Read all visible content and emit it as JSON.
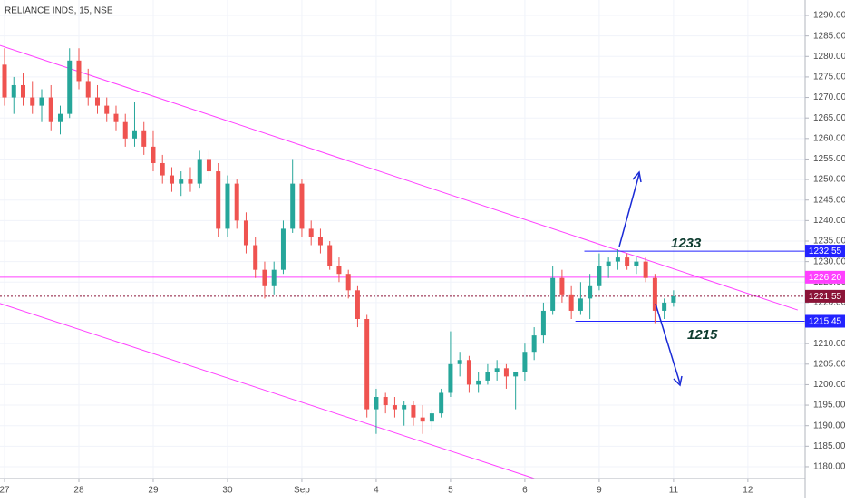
{
  "chart_data": {
    "type": "candlestick",
    "title": "RELIANCE INDS, 15, NSE",
    "up_color": "#26a69a",
    "down_color": "#ef5350",
    "grid": true,
    "xlim": [
      -0.061,
      10.77
    ],
    "xticks": [
      {
        "value": 0,
        "label": "27"
      },
      {
        "value": 1,
        "label": "28"
      },
      {
        "value": 2,
        "label": "29"
      },
      {
        "value": 3,
        "label": "30"
      },
      {
        "value": 4,
        "label": "Sep"
      },
      {
        "value": 5,
        "label": "4"
      },
      {
        "value": 6,
        "label": "5"
      },
      {
        "value": 7,
        "label": "6"
      },
      {
        "value": 8,
        "label": "9"
      },
      {
        "value": 9,
        "label": "11"
      },
      {
        "value": 10,
        "label": "12"
      }
    ],
    "ylim": [
      1177.12,
      1293.76
    ],
    "yticks": [
      {
        "value": 1180,
        "label": "1180.00"
      },
      {
        "value": 1185,
        "label": "1185.00"
      },
      {
        "value": 1190,
        "label": "1190.00"
      },
      {
        "value": 1195,
        "label": "1195.00"
      },
      {
        "value": 1200,
        "label": "1200.00"
      },
      {
        "value": 1205,
        "label": "1205.00"
      },
      {
        "value": 1210,
        "label": "1210.00"
      },
      {
        "value": 1215,
        "label": "1215.00"
      },
      {
        "value": 1220,
        "label": "1220.00"
      },
      {
        "value": 1225,
        "label": "1225.00"
      },
      {
        "value": 1230,
        "label": "1230.00"
      },
      {
        "value": 1235,
        "label": "1235.00"
      },
      {
        "value": 1240,
        "label": "1240.00"
      },
      {
        "value": 1245,
        "label": "1245.00"
      },
      {
        "value": 1250,
        "label": "1250.00"
      },
      {
        "value": 1255,
        "label": "1255.00"
      },
      {
        "value": 1260,
        "label": "1260.00"
      },
      {
        "value": 1265,
        "label": "1265.00"
      },
      {
        "value": 1270,
        "label": "1270.00"
      },
      {
        "value": 1275,
        "label": "1275.00"
      },
      {
        "value": 1280,
        "label": "1280.00"
      },
      {
        "value": 1285,
        "label": "1285.00"
      },
      {
        "value": 1290,
        "label": "1290.00"
      }
    ],
    "x": [
      0,
      0.125,
      0.25,
      0.375,
      0.5,
      0.625,
      0.75,
      0.875,
      1,
      1.125,
      1.25,
      1.375,
      1.5,
      1.625,
      1.75,
      1.875,
      2,
      2.125,
      2.25,
      2.375,
      2.5,
      2.625,
      2.75,
      2.875,
      3,
      3.125,
      3.25,
      3.375,
      3.5,
      3.625,
      3.75,
      3.875,
      4,
      4.125,
      4.25,
      4.375,
      4.5,
      4.625,
      4.75,
      4.875,
      5,
      5.125,
      5.25,
      5.375,
      5.5,
      5.625,
      5.75,
      5.875,
      6,
      6.125,
      6.25,
      6.375,
      6.5,
      6.625,
      6.75,
      6.875,
      7,
      7.125,
      7.25,
      7.375,
      7.5,
      7.625,
      7.75,
      7.875,
      8,
      8.125,
      8.25,
      8.375,
      8.5,
      8.625,
      8.75,
      8.875,
      9
    ],
    "open": [
      1278,
      1270,
      1273,
      1270,
      1268,
      1270,
      1264,
      1266,
      1279,
      1274,
      1270,
      1268,
      1266,
      1264,
      1260,
      1262,
      1258,
      1254,
      1251,
      1249,
      1250,
      1249,
      1255,
      1252,
      1238,
      1249,
      1240,
      1234,
      1228,
      1224,
      1228,
      1238,
      1249,
      1238,
      1236,
      1234,
      1229,
      1227,
      1223,
      1216,
      1194,
      1197,
      1195,
      1194,
      1195,
      1192,
      1191,
      1193,
      1198,
      1205,
      1206,
      1200,
      1201,
      1203,
      1204,
      1202,
      1203,
      1208,
      1212,
      1218,
      1226,
      1222,
      1218,
      1221,
      1224,
      1229,
      1230,
      1231,
      1229,
      1230,
      1226,
      1218,
      1220
    ],
    "high": [
      1282,
      1275,
      1276,
      1274,
      1272,
      1273,
      1268,
      1282,
      1282,
      1277,
      1273,
      1270,
      1268,
      1266,
      1269,
      1264,
      1262,
      1256,
      1253,
      1252,
      1253,
      1257,
      1257,
      1254,
      1251,
      1250,
      1242,
      1236,
      1230,
      1230,
      1240,
      1255,
      1250,
      1240,
      1238,
      1235,
      1231,
      1228,
      1224,
      1217,
      1199,
      1198,
      1197,
      1196,
      1196,
      1195,
      1194,
      1199,
      1213,
      1208,
      1207,
      1203,
      1205,
      1206,
      1205,
      1203,
      1210,
      1214,
      1220,
      1229,
      1228,
      1224,
      1225,
      1227,
      1232,
      1231,
      1233,
      1232,
      1231,
      1231,
      1227,
      1221,
      1223
    ],
    "low": [
      1268,
      1266,
      1268,
      1266,
      1264,
      1262,
      1261,
      1265,
      1272,
      1268,
      1266,
      1264,
      1262,
      1258,
      1258,
      1256,
      1252,
      1249,
      1247,
      1246,
      1247,
      1248,
      1250,
      1236,
      1236,
      1238,
      1232,
      1226,
      1221,
      1222,
      1227,
      1237,
      1236,
      1234,
      1232,
      1228,
      1225,
      1221,
      1214,
      1192,
      1188,
      1193,
      1192,
      1190,
      1190,
      1188,
      1189,
      1192,
      1197,
      1202,
      1198,
      1198,
      1200,
      1201,
      1199,
      1194,
      1201,
      1206,
      1210,
      1217,
      1220,
      1216,
      1217,
      1216,
      1223,
      1226,
      1228,
      1228,
      1227,
      1225,
      1215,
      1216,
      1219
    ],
    "close": [
      1270,
      1273,
      1270,
      1268,
      1270,
      1264,
      1266,
      1279,
      1274,
      1270,
      1268,
      1266,
      1264,
      1260,
      1262,
      1258,
      1254,
      1251,
      1249,
      1250,
      1249,
      1255,
      1252,
      1238,
      1249,
      1240,
      1234,
      1228,
      1224,
      1228,
      1238,
      1249,
      1238,
      1236,
      1234,
      1229,
      1227,
      1223,
      1216,
      1194,
      1197,
      1195,
      1194,
      1195,
      1192,
      1191,
      1193,
      1198,
      1205,
      1206,
      1200,
      1201,
      1203,
      1204,
      1202,
      1203,
      1208,
      1212,
      1218,
      1226,
      1222,
      1218,
      1221,
      1224,
      1229,
      1230,
      1231,
      1229,
      1230,
      1226,
      1218,
      1220,
      1221.55
    ],
    "trendlines": [
      {
        "color": "#ff40ff",
        "points": [
          [
            -0.061,
            1282.7
          ],
          [
            10.67,
            1218.2
          ]
        ]
      },
      {
        "color": "#ff40ff",
        "points": [
          [
            -0.061,
            1219.8
          ],
          [
            7.13,
            1177.12
          ]
        ]
      }
    ],
    "levels": [
      {
        "value": 1232.55,
        "label": "1232.55",
        "color": "#2323ff",
        "from": 7.8,
        "dash": false
      },
      {
        "value": 1226.2,
        "label": "1226.20",
        "color": "#ff40ff",
        "from": -0.061,
        "dash": false
      },
      {
        "value": 1221.55,
        "label": "1221.55",
        "color": "#8b1438",
        "from": -0.061,
        "dash": true
      },
      {
        "value": 1215.45,
        "label": "1215.45",
        "color": "#2323ff",
        "from": 7.68,
        "dash": false
      }
    ],
    "annotations": [
      {
        "text": "1233"
      },
      {
        "text": "1215"
      }
    ]
  }
}
